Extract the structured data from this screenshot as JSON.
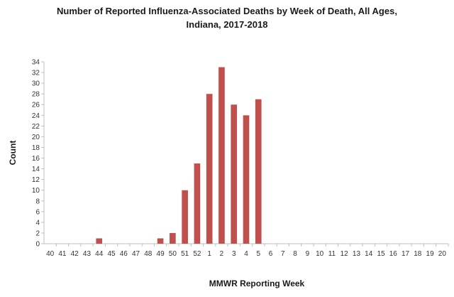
{
  "chart_data": {
    "type": "bar",
    "title_lines": [
      "Number of Reported Influenza-Associated Deaths by Week of Death, All Ages,",
      "Indiana, 2017-2018"
    ],
    "xlabel": "MMWR Reporting Week",
    "ylabel": "Count",
    "ylim": [
      0,
      34
    ],
    "yticks": [
      0,
      2,
      4,
      6,
      8,
      10,
      12,
      14,
      16,
      18,
      20,
      22,
      24,
      26,
      28,
      30,
      32,
      34
    ],
    "grid": false,
    "legend": "none",
    "bar_color": "#c0504d",
    "categories": [
      "40",
      "41",
      "42",
      "43",
      "44",
      "45",
      "46",
      "47",
      "48",
      "49",
      "50",
      "51",
      "52",
      "1",
      "2",
      "3",
      "4",
      "5",
      "6",
      "7",
      "8",
      "9",
      "10",
      "11",
      "12",
      "13",
      "14",
      "15",
      "16",
      "17",
      "18",
      "19",
      "20"
    ],
    "values": [
      0,
      0,
      0,
      0,
      1,
      0,
      0,
      0,
      0,
      1,
      2,
      10,
      15,
      28,
      33,
      26,
      24,
      27,
      0,
      0,
      0,
      0,
      0,
      0,
      0,
      0,
      0,
      0,
      0,
      0,
      0,
      0,
      0
    ]
  }
}
